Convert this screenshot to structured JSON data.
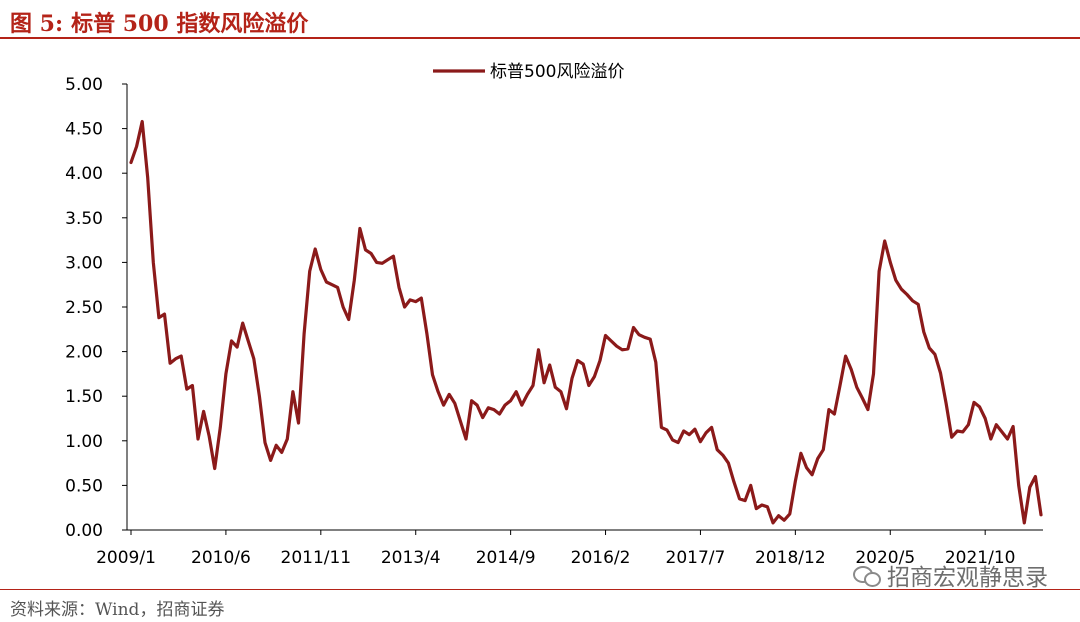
{
  "figure": {
    "number_label": "图 5:",
    "title": "标普 500 指数风险溢价",
    "source": "资料来源：Wind，招商证券",
    "watermark": "招商宏观静思录",
    "watermark_icon": "wechat-icon",
    "accent_color": "#b42318"
  },
  "chart_data": {
    "type": "line",
    "title": "",
    "xlabel": "",
    "ylabel": "",
    "ylim": [
      0,
      5
    ],
    "y_ticks": [
      "0.00",
      "0.50",
      "1.00",
      "1.50",
      "2.00",
      "2.50",
      "3.00",
      "3.50",
      "4.00",
      "4.50",
      "5.00"
    ],
    "x_ticks": [
      "2009/1",
      "2010/6",
      "2011/11",
      "2013/4",
      "2014/9",
      "2016/2",
      "2017/7",
      "2018/12",
      "2020/5",
      "2021/10"
    ],
    "grid": false,
    "legend_position": "top-center",
    "series": [
      {
        "name": "标普500风险溢价",
        "color": "#8b1a1a",
        "x": [
          "2009/1",
          "2009/2",
          "2009/3",
          "2009/4",
          "2009/5",
          "2009/6",
          "2009/7",
          "2009/8",
          "2009/9",
          "2009/10",
          "2009/11",
          "2009/12",
          "2010/1",
          "2010/2",
          "2010/3",
          "2010/4",
          "2010/5",
          "2010/6",
          "2010/7",
          "2010/8",
          "2010/9",
          "2010/10",
          "2010/11",
          "2010/12",
          "2011/1",
          "2011/2",
          "2011/3",
          "2011/4",
          "2011/5",
          "2011/6",
          "2011/7",
          "2011/8",
          "2011/9",
          "2011/10",
          "2011/11",
          "2011/12",
          "2012/1",
          "2012/2",
          "2012/3",
          "2012/4",
          "2012/5",
          "2012/6",
          "2012/7",
          "2012/8",
          "2012/9",
          "2012/10",
          "2012/11",
          "2012/12",
          "2013/1",
          "2013/2",
          "2013/3",
          "2013/4",
          "2013/5",
          "2013/6",
          "2013/7",
          "2013/8",
          "2013/9",
          "2013/10",
          "2013/11",
          "2013/12",
          "2014/1",
          "2014/2",
          "2014/3",
          "2014/4",
          "2014/5",
          "2014/6",
          "2014/7",
          "2014/8",
          "2014/9",
          "2014/10",
          "2014/11",
          "2014/12",
          "2015/1",
          "2015/2",
          "2015/3",
          "2015/4",
          "2015/5",
          "2015/6",
          "2015/7",
          "2015/8",
          "2015/9",
          "2015/10",
          "2015/11",
          "2015/12",
          "2016/1",
          "2016/2",
          "2016/3",
          "2016/4",
          "2016/5",
          "2016/6",
          "2016/7",
          "2016/8",
          "2016/9",
          "2016/10",
          "2016/11",
          "2016/12",
          "2017/1",
          "2017/2",
          "2017/3",
          "2017/4",
          "2017/5",
          "2017/6",
          "2017/7",
          "2017/8",
          "2017/9",
          "2017/10",
          "2017/11",
          "2017/12",
          "2018/1",
          "2018/2",
          "2018/3",
          "2018/4",
          "2018/5",
          "2018/6",
          "2018/7",
          "2018/8",
          "2018/9",
          "2018/10",
          "2018/11",
          "2018/12",
          "2019/1",
          "2019/2",
          "2019/3",
          "2019/4",
          "2019/5",
          "2019/6",
          "2019/7",
          "2019/8",
          "2019/9",
          "2019/10",
          "2019/11",
          "2019/12",
          "2020/1",
          "2020/2",
          "2020/3",
          "2020/4",
          "2020/5",
          "2020/6",
          "2020/7",
          "2020/8",
          "2020/9",
          "2020/10",
          "2020/11",
          "2020/12",
          "2021/1",
          "2021/2",
          "2021/3",
          "2021/4",
          "2021/5",
          "2021/6",
          "2021/7",
          "2021/8",
          "2021/9",
          "2021/10",
          "2021/11",
          "2021/12",
          "2022/1",
          "2022/2",
          "2022/3",
          "2022/4",
          "2022/5",
          "2022/6",
          "2022/7",
          "2022/8"
        ],
        "values": [
          4.12,
          4.3,
          4.58,
          3.95,
          3.0,
          2.38,
          2.42,
          1.87,
          1.92,
          1.95,
          1.58,
          1.62,
          1.02,
          1.33,
          1.05,
          0.69,
          1.15,
          1.75,
          2.12,
          2.05,
          2.32,
          2.12,
          1.92,
          1.5,
          0.98,
          0.78,
          0.95,
          0.87,
          1.02,
          1.55,
          1.2,
          2.2,
          2.9,
          3.15,
          2.92,
          2.78,
          2.75,
          2.72,
          2.5,
          2.36,
          2.8,
          3.38,
          3.14,
          3.1,
          3.0,
          2.99,
          3.03,
          3.07,
          2.72,
          2.5,
          2.58,
          2.56,
          2.6,
          2.2,
          1.74,
          1.55,
          1.4,
          1.52,
          1.42,
          1.22,
          1.02,
          1.45,
          1.4,
          1.26,
          1.37,
          1.35,
          1.3,
          1.4,
          1.45,
          1.55,
          1.4,
          1.52,
          1.62,
          2.02,
          1.65,
          1.85,
          1.6,
          1.55,
          1.36,
          1.7,
          1.9,
          1.86,
          1.62,
          1.72,
          1.9,
          2.18,
          2.12,
          2.06,
          2.02,
          2.03,
          2.27,
          2.19,
          2.16,
          2.14,
          1.88,
          1.15,
          1.12,
          1.01,
          0.98,
          1.11,
          1.07,
          1.13,
          0.99,
          1.09,
          1.15,
          0.9,
          0.84,
          0.75,
          0.54,
          0.35,
          0.33,
          0.5,
          0.24,
          0.28,
          0.26,
          0.08,
          0.16,
          0.11,
          0.18,
          0.55,
          0.86,
          0.7,
          0.62,
          0.8,
          0.9,
          1.35,
          1.3,
          1.62,
          1.95,
          1.8,
          1.6,
          1.48,
          1.35,
          1.75,
          2.9,
          3.24,
          3.0,
          2.8,
          2.7,
          2.64,
          2.57,
          2.53,
          2.22,
          2.04,
          1.97,
          1.76,
          1.42,
          1.04,
          1.11,
          1.1,
          1.18,
          1.43,
          1.38,
          1.25,
          1.02,
          1.18,
          1.1,
          1.02,
          1.16,
          0.5,
          0.08,
          0.48,
          0.6,
          0.17
        ]
      }
    ]
  }
}
